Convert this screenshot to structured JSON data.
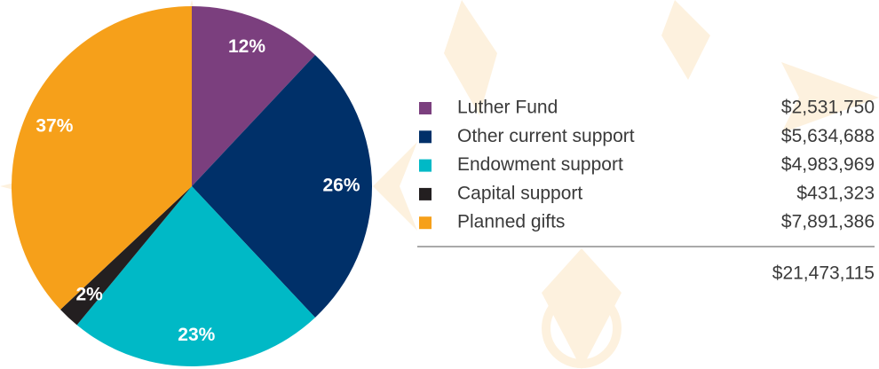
{
  "chart_data": {
    "type": "pie",
    "categories": [
      "Luther Fund",
      "Other current support",
      "Endowment support",
      "Capital support",
      "Planned gifts"
    ],
    "values": [
      12,
      26,
      23,
      2,
      37
    ],
    "value_labels": [
      "12%",
      "26%",
      "23%",
      "2%",
      "37%"
    ],
    "colors": [
      "#7b3f7e",
      "#003069",
      "#00b9c6",
      "#231f20",
      "#f6a01a"
    ],
    "amounts": [
      "$2,531,750",
      "$5,634,688",
      "$4,983,969",
      "$431,323",
      "$7,891,386"
    ],
    "total": "$21,473,115"
  }
}
